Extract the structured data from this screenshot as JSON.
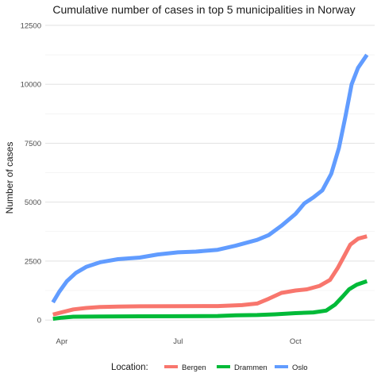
{
  "chart_data": {
    "type": "line",
    "title": "Cumulative number of cases in top 5 municipalities in Norway",
    "xlabel": "",
    "ylabel": "Number of cases",
    "x_dates": [
      "2020-03-25",
      "2020-11-26"
    ],
    "x_ticks": [
      {
        "date": "2020-04-01",
        "label": "Apr"
      },
      {
        "date": "2020-07-01",
        "label": "Jul"
      },
      {
        "date": "2020-10-01",
        "label": "Oct"
      }
    ],
    "ylim": [
      -500,
      12700
    ],
    "y_ticks": [
      0,
      2500,
      5000,
      7500,
      10000,
      12500
    ],
    "grid": true,
    "legend": {
      "title": "Location:",
      "position": "bottom",
      "entries": [
        "Bergen",
        "Drammen",
        "Oslo"
      ]
    },
    "series": [
      {
        "name": "Bergen",
        "color": "#F8766D",
        "points": [
          [
            "2020-03-25",
            230
          ],
          [
            "2020-04-01",
            330
          ],
          [
            "2020-04-10",
            450
          ],
          [
            "2020-04-20",
            510
          ],
          [
            "2020-05-01",
            550
          ],
          [
            "2020-05-15",
            570
          ],
          [
            "2020-06-01",
            580
          ],
          [
            "2020-07-01",
            585
          ],
          [
            "2020-08-01",
            590
          ],
          [
            "2020-08-20",
            630
          ],
          [
            "2020-09-01",
            700
          ],
          [
            "2020-09-10",
            900
          ],
          [
            "2020-09-20",
            1150
          ],
          [
            "2020-10-01",
            1250
          ],
          [
            "2020-10-10",
            1300
          ],
          [
            "2020-10-20",
            1450
          ],
          [
            "2020-10-28",
            1700
          ],
          [
            "2020-11-03",
            2200
          ],
          [
            "2020-11-08",
            2700
          ],
          [
            "2020-11-13",
            3200
          ],
          [
            "2020-11-19",
            3450
          ],
          [
            "2020-11-26",
            3550
          ]
        ]
      },
      {
        "name": "Drammen",
        "color": "#00BA38",
        "points": [
          [
            "2020-03-25",
            50
          ],
          [
            "2020-04-01",
            100
          ],
          [
            "2020-04-10",
            140
          ],
          [
            "2020-05-01",
            150
          ],
          [
            "2020-06-01",
            155
          ],
          [
            "2020-07-01",
            160
          ],
          [
            "2020-08-01",
            170
          ],
          [
            "2020-08-15",
            200
          ],
          [
            "2020-09-01",
            210
          ],
          [
            "2020-09-15",
            240
          ],
          [
            "2020-10-01",
            290
          ],
          [
            "2020-10-15",
            320
          ],
          [
            "2020-10-25",
            400
          ],
          [
            "2020-11-01",
            650
          ],
          [
            "2020-11-07",
            1000
          ],
          [
            "2020-11-12",
            1300
          ],
          [
            "2020-11-18",
            1500
          ],
          [
            "2020-11-26",
            1650
          ]
        ]
      },
      {
        "name": "Oslo",
        "color": "#619CFF",
        "points": [
          [
            "2020-03-25",
            750
          ],
          [
            "2020-03-30",
            1200
          ],
          [
            "2020-04-05",
            1650
          ],
          [
            "2020-04-12",
            2000
          ],
          [
            "2020-04-20",
            2250
          ],
          [
            "2020-05-01",
            2450
          ],
          [
            "2020-05-15",
            2580
          ],
          [
            "2020-06-01",
            2650
          ],
          [
            "2020-06-15",
            2780
          ],
          [
            "2020-07-01",
            2870
          ],
          [
            "2020-07-15",
            2900
          ],
          [
            "2020-08-01",
            2980
          ],
          [
            "2020-08-15",
            3150
          ],
          [
            "2020-09-01",
            3400
          ],
          [
            "2020-09-10",
            3600
          ],
          [
            "2020-09-20",
            4000
          ],
          [
            "2020-10-01",
            4500
          ],
          [
            "2020-10-08",
            4950
          ],
          [
            "2020-10-15",
            5200
          ],
          [
            "2020-10-22",
            5500
          ],
          [
            "2020-10-29",
            6200
          ],
          [
            "2020-11-04",
            7300
          ],
          [
            "2020-11-09",
            8600
          ],
          [
            "2020-11-14",
            10000
          ],
          [
            "2020-11-19",
            10700
          ],
          [
            "2020-11-26",
            11250
          ]
        ]
      }
    ]
  }
}
